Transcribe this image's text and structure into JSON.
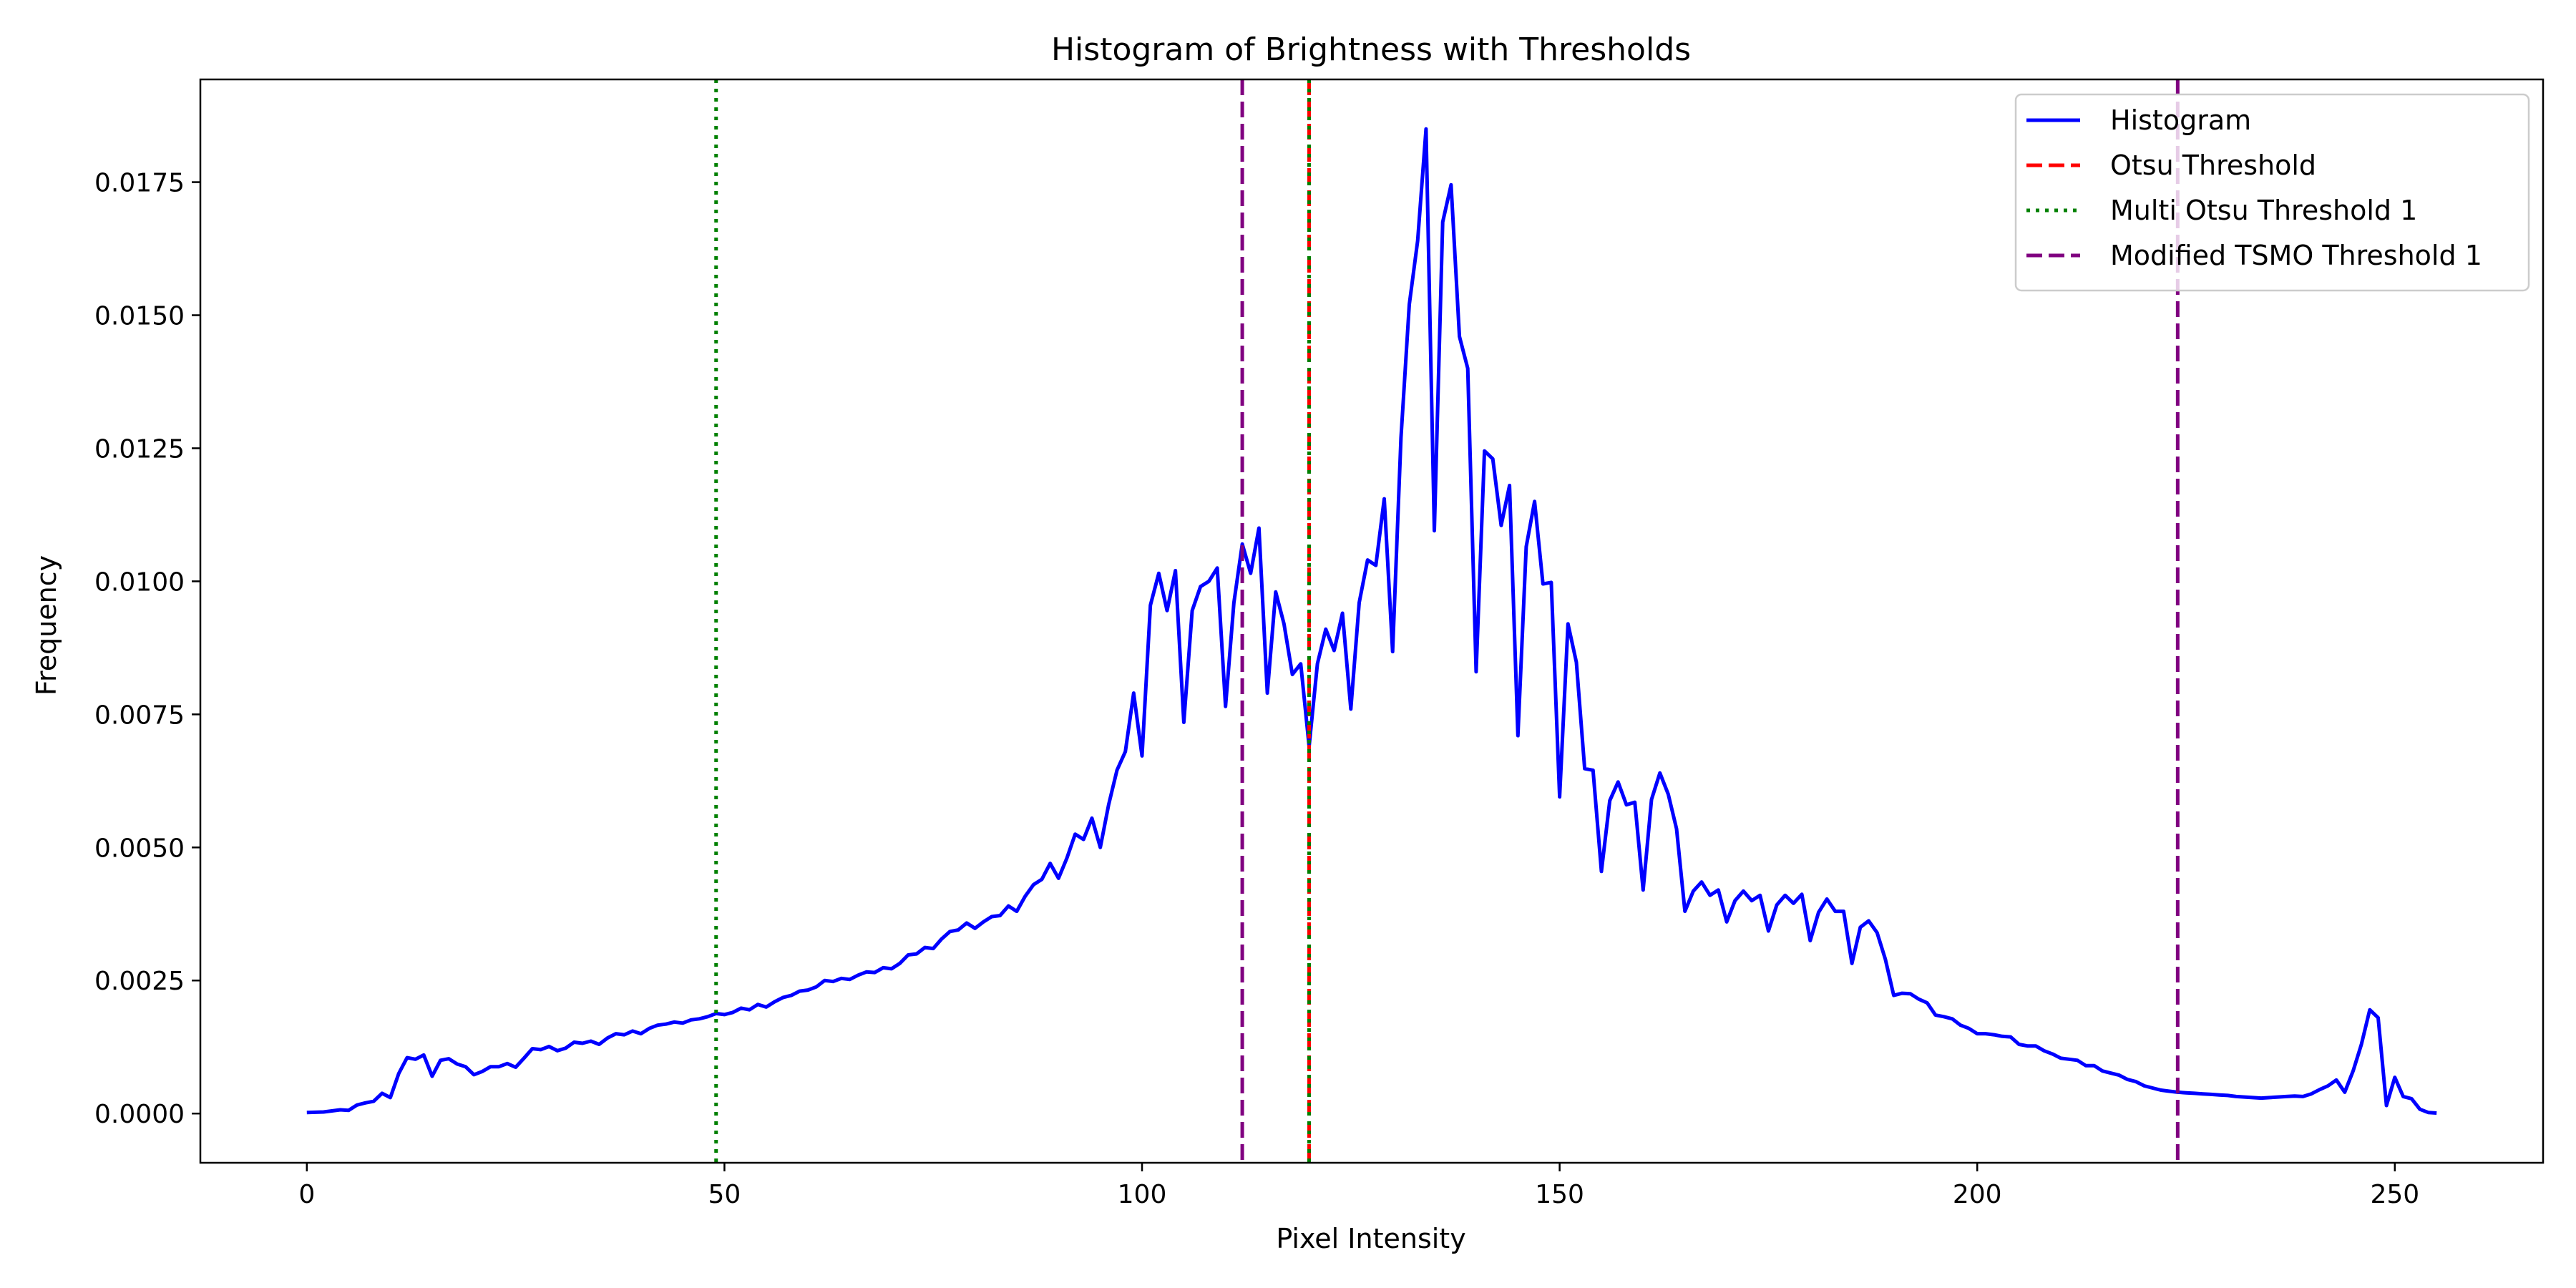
{
  "chart_data": {
    "type": "line",
    "title": "Histogram of Brightness with Thresholds",
    "xlabel": "Pixel Intensity",
    "ylabel": "Frequency",
    "xlim": [
      -12.75,
      267.75
    ],
    "ylim": [
      -0.000925,
      0.01943
    ],
    "xticks": [
      0,
      50,
      100,
      150,
      200,
      250
    ],
    "xtick_labels": [
      "0",
      "50",
      "100",
      "150",
      "200",
      "250"
    ],
    "yticks": [
      0,
      0.0025,
      0.005,
      0.0075,
      0.01,
      0.0125,
      0.015,
      0.0175
    ],
    "ytick_labels": [
      "0.0000",
      "0.0025",
      "0.0050",
      "0.0075",
      "0.0100",
      "0.0125",
      "0.0150",
      "0.0175"
    ],
    "grid": false,
    "legend_position": "top-right",
    "legend": [
      "Histogram",
      "Otsu Threshold",
      "Multi Otsu Threshold 1",
      "Modified TSMO Threshold 1"
    ],
    "series": [
      {
        "name": "Histogram",
        "color": "#0000ff",
        "style": "solid",
        "points": [
          [
            0,
            2e-05
          ],
          [
            2,
            3e-05
          ],
          [
            4,
            7e-05
          ],
          [
            5,
            6e-05
          ],
          [
            6,
            0.00016
          ],
          [
            7,
            0.0002
          ],
          [
            8,
            0.00023
          ],
          [
            9,
            0.00038
          ],
          [
            10,
            0.0003
          ],
          [
            11,
            0.00075
          ],
          [
            12,
            0.00105
          ],
          [
            13,
            0.00102
          ],
          [
            14,
            0.0011
          ],
          [
            15,
            0.0007
          ],
          [
            16,
            0.001
          ],
          [
            17,
            0.00103
          ],
          [
            18,
            0.00093
          ],
          [
            19,
            0.00088
          ],
          [
            20,
            0.00073
          ],
          [
            21,
            0.00079
          ],
          [
            22,
            0.00088
          ],
          [
            23,
            0.00088
          ],
          [
            24,
            0.00094
          ],
          [
            25,
            0.00087
          ],
          [
            26,
            0.00104
          ],
          [
            27,
            0.00122
          ],
          [
            28,
            0.0012
          ],
          [
            29,
            0.00126
          ],
          [
            30,
            0.00118
          ],
          [
            31,
            0.00123
          ],
          [
            32,
            0.00134
          ],
          [
            33,
            0.00132
          ],
          [
            34,
            0.00136
          ],
          [
            35,
            0.0013
          ],
          [
            36,
            0.00142
          ],
          [
            37,
            0.0015
          ],
          [
            38,
            0.00148
          ],
          [
            39,
            0.00155
          ],
          [
            40,
            0.0015
          ],
          [
            41,
            0.0016
          ],
          [
            42,
            0.00166
          ],
          [
            43,
            0.00168
          ],
          [
            44,
            0.00172
          ],
          [
            45,
            0.0017
          ],
          [
            46,
            0.00176
          ],
          [
            47,
            0.00178
          ],
          [
            48,
            0.00182
          ],
          [
            49,
            0.00188
          ],
          [
            50,
            0.00186
          ],
          [
            51,
            0.0019
          ],
          [
            52,
            0.00198
          ],
          [
            53,
            0.00195
          ],
          [
            54,
            0.00205
          ],
          [
            55,
            0.002
          ],
          [
            56,
            0.0021
          ],
          [
            57,
            0.00218
          ],
          [
            58,
            0.00222
          ],
          [
            59,
            0.0023
          ],
          [
            60,
            0.00232
          ],
          [
            61,
            0.00238
          ],
          [
            62,
            0.0025
          ],
          [
            63,
            0.00248
          ],
          [
            64,
            0.00254
          ],
          [
            65,
            0.00252
          ],
          [
            66,
            0.0026
          ],
          [
            67,
            0.00266
          ],
          [
            68,
            0.00265
          ],
          [
            69,
            0.00274
          ],
          [
            70,
            0.00272
          ],
          [
            71,
            0.00282
          ],
          [
            72,
            0.00298
          ],
          [
            73,
            0.003
          ],
          [
            74,
            0.00312
          ],
          [
            75,
            0.0031
          ],
          [
            76,
            0.00328
          ],
          [
            77,
            0.00342
          ],
          [
            78,
            0.00345
          ],
          [
            79,
            0.00358
          ],
          [
            80,
            0.00348
          ],
          [
            81,
            0.0036
          ],
          [
            82,
            0.0037
          ],
          [
            83,
            0.00372
          ],
          [
            84,
            0.0039
          ],
          [
            85,
            0.0038
          ],
          [
            86,
            0.00408
          ],
          [
            87,
            0.0043
          ],
          [
            88,
            0.0044
          ],
          [
            89,
            0.0047
          ],
          [
            90,
            0.00442
          ],
          [
            91,
            0.0048
          ],
          [
            92,
            0.00525
          ],
          [
            93,
            0.00515
          ],
          [
            94,
            0.00555
          ],
          [
            95,
            0.005
          ],
          [
            96,
            0.0058
          ],
          [
            97,
            0.00645
          ],
          [
            98,
            0.0068
          ],
          [
            99,
            0.0079
          ],
          [
            100,
            0.00672
          ],
          [
            101,
            0.00955
          ],
          [
            102,
            0.01015
          ],
          [
            103,
            0.00945
          ],
          [
            104,
            0.0102
          ],
          [
            105,
            0.00735
          ],
          [
            106,
            0.00945
          ],
          [
            107,
            0.0099
          ],
          [
            108,
            0.01
          ],
          [
            109,
            0.01025
          ],
          [
            110,
            0.00765
          ],
          [
            111,
            0.0096
          ],
          [
            112,
            0.0107
          ],
          [
            113,
            0.01015
          ],
          [
            114,
            0.011
          ],
          [
            115,
            0.0079
          ],
          [
            116,
            0.0098
          ],
          [
            117,
            0.0092
          ],
          [
            118,
            0.00825
          ],
          [
            119,
            0.00845
          ],
          [
            120,
            0.0069
          ],
          [
            121,
            0.00845
          ],
          [
            122,
            0.0091
          ],
          [
            123,
            0.0087
          ],
          [
            124,
            0.0094
          ],
          [
            125,
            0.0076
          ],
          [
            126,
            0.0096
          ],
          [
            127,
            0.0104
          ],
          [
            128,
            0.0103
          ],
          [
            129,
            0.01155
          ],
          [
            130,
            0.00868
          ],
          [
            131,
            0.0127
          ],
          [
            132,
            0.0152
          ],
          [
            133,
            0.0164
          ],
          [
            134,
            0.0185
          ],
          [
            135,
            0.01095
          ],
          [
            136,
            0.01675
          ],
          [
            137,
            0.01745
          ],
          [
            138,
            0.0146
          ],
          [
            139,
            0.014
          ],
          [
            140,
            0.0083
          ],
          [
            141,
            0.01245
          ],
          [
            142,
            0.0123
          ],
          [
            143,
            0.01105
          ],
          [
            144,
            0.0118
          ],
          [
            145,
            0.0071
          ],
          [
            146,
            0.01065
          ],
          [
            147,
            0.0115
          ],
          [
            148,
            0.00995
          ],
          [
            149,
            0.00998
          ],
          [
            150,
            0.00595
          ],
          [
            151,
            0.0092
          ],
          [
            152,
            0.00848
          ],
          [
            153,
            0.00648
          ],
          [
            154,
            0.00645
          ],
          [
            155,
            0.00455
          ],
          [
            156,
            0.00588
          ],
          [
            157,
            0.00623
          ],
          [
            158,
            0.0058
          ],
          [
            159,
            0.00585
          ],
          [
            160,
            0.0042
          ],
          [
            161,
            0.0059
          ],
          [
            162,
            0.0064
          ],
          [
            163,
            0.006
          ],
          [
            164,
            0.00535
          ],
          [
            165,
            0.0038
          ],
          [
            166,
            0.00418
          ],
          [
            167,
            0.00435
          ],
          [
            168,
            0.0041
          ],
          [
            169,
            0.0042
          ],
          [
            170,
            0.0036
          ],
          [
            171,
            0.004
          ],
          [
            172,
            0.00418
          ],
          [
            173,
            0.004
          ],
          [
            174,
            0.0041
          ],
          [
            175,
            0.00343
          ],
          [
            176,
            0.00392
          ],
          [
            177,
            0.0041
          ],
          [
            178,
            0.00395
          ],
          [
            179,
            0.00412
          ],
          [
            180,
            0.00325
          ],
          [
            181,
            0.00378
          ],
          [
            182,
            0.00403
          ],
          [
            183,
            0.0038
          ],
          [
            184,
            0.0038
          ],
          [
            185,
            0.00282
          ],
          [
            186,
            0.0035
          ],
          [
            187,
            0.00362
          ],
          [
            188,
            0.0034
          ],
          [
            189,
            0.0029
          ],
          [
            190,
            0.00222
          ],
          [
            191,
            0.00226
          ],
          [
            192,
            0.00225
          ],
          [
            193,
            0.00215
          ],
          [
            194,
            0.00208
          ],
          [
            195,
            0.00185
          ],
          [
            196,
            0.00182
          ],
          [
            197,
            0.00178
          ],
          [
            198,
            0.00166
          ],
          [
            199,
            0.0016
          ],
          [
            200,
            0.0015
          ],
          [
            201,
            0.0015
          ],
          [
            202,
            0.00148
          ],
          [
            203,
            0.00145
          ],
          [
            204,
            0.00144
          ],
          [
            205,
            0.0013
          ],
          [
            206,
            0.00127
          ],
          [
            207,
            0.00127
          ],
          [
            208,
            0.00118
          ],
          [
            209,
            0.00112
          ],
          [
            210,
            0.00104
          ],
          [
            211,
            0.00102
          ],
          [
            212,
            0.001
          ],
          [
            213,
            0.0009
          ],
          [
            214,
            0.0009
          ],
          [
            215,
            0.0008
          ],
          [
            216,
            0.00076
          ],
          [
            217,
            0.00072
          ],
          [
            218,
            0.00064
          ],
          [
            219,
            0.0006
          ],
          [
            220,
            0.00052
          ],
          [
            221,
            0.00048
          ],
          [
            222,
            0.00044
          ],
          [
            223,
            0.00042
          ],
          [
            224,
            0.0004
          ],
          [
            225,
            0.00039
          ],
          [
            226,
            0.00038
          ],
          [
            227,
            0.00037
          ],
          [
            228,
            0.00036
          ],
          [
            229,
            0.00035
          ],
          [
            230,
            0.00034
          ],
          [
            231,
            0.00032
          ],
          [
            232,
            0.00031
          ],
          [
            233,
            0.0003
          ],
          [
            234,
            0.00029
          ],
          [
            235,
            0.0003
          ],
          [
            236,
            0.00031
          ],
          [
            237,
            0.00032
          ],
          [
            238,
            0.00033
          ],
          [
            239,
            0.00032
          ],
          [
            240,
            0.00037
          ],
          [
            241,
            0.00045
          ],
          [
            242,
            0.00052
          ],
          [
            243,
            0.00063
          ],
          [
            244,
            0.0004
          ],
          [
            245,
            0.0008
          ],
          [
            246,
            0.0013
          ],
          [
            247,
            0.00195
          ],
          [
            248,
            0.0018
          ],
          [
            249,
            0.00015
          ],
          [
            250,
            0.00068
          ],
          [
            251,
            0.00032
          ],
          [
            252,
            0.00028
          ],
          [
            253,
            8e-05
          ],
          [
            254,
            2e-05
          ],
          [
            255,
            1e-05
          ]
        ]
      }
    ],
    "vlines": [
      {
        "legend": "Otsu Threshold",
        "x": 120,
        "color": "#ff0000",
        "style": "dashed"
      },
      {
        "legend": "Multi Otsu Threshold 1",
        "x": 49,
        "color": "#008000",
        "style": "dotted"
      },
      {
        "legend": "Multi Otsu Threshold 1",
        "x": 120,
        "color": "#008000",
        "style": "dotted"
      },
      {
        "legend": "Modified TSMO Threshold 1",
        "x": 112,
        "color": "#800080",
        "style": "dashed"
      },
      {
        "legend": "Modified TSMO Threshold 1",
        "x": 224,
        "color": "#800080",
        "style": "dashed"
      }
    ],
    "legend_items": [
      {
        "label": "Histogram",
        "color": "#0000ff",
        "style": "solid"
      },
      {
        "label": "Otsu Threshold",
        "color": "#ff0000",
        "style": "dashed"
      },
      {
        "label": "Multi Otsu Threshold 1",
        "color": "#008000",
        "style": "dotted"
      },
      {
        "label": "Modified TSMO Threshold 1",
        "color": "#800080",
        "style": "dashed"
      }
    ]
  }
}
